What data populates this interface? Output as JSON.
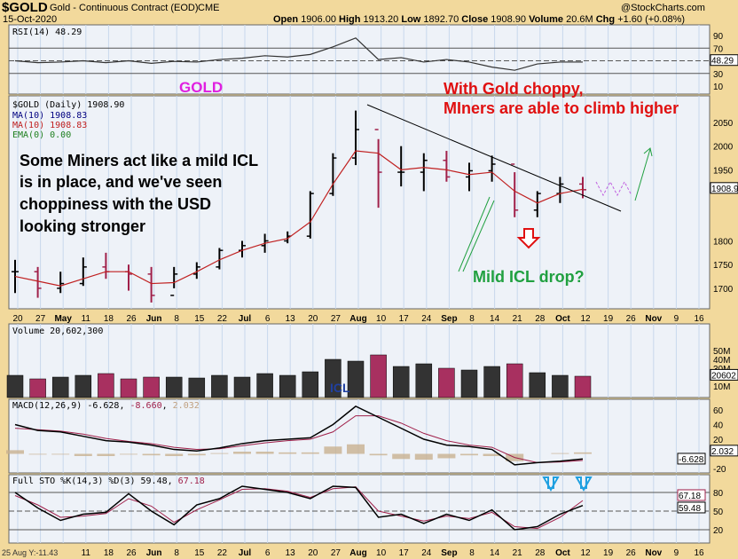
{
  "header": {
    "symbol": "$GOLD",
    "name": "Gold - Continuous Contract (EOD)",
    "exchange": "CME",
    "date": "15-Oct-2020",
    "watermark": "@StockCharts.com",
    "quote": {
      "open_l": "Open",
      "open": "1906.00",
      "high_l": "High",
      "high": "1913.20",
      "low_l": "Low",
      "low": "1892.70",
      "close_l": "Close",
      "close": "1908.90",
      "vol_l": "Volume",
      "vol": "20.6M",
      "chg_l": "Chg",
      "chg": "+1.60 (+0.08%)"
    }
  },
  "annotations": {
    "gold": "GOLD",
    "choppy1": "With Gold choppy,",
    "choppy2": "MIners are able to climb higher",
    "miners1": "Some Miners act like a mild ICL",
    "miners2": "is in place, and we've seen",
    "miners3": "choppiness with the USD",
    "miners4": "looking stronger",
    "icl_drop": "Mild ICL drop?",
    "icl": "ICL"
  },
  "footer": {
    "cursor": "25 Aug Y:-11.43"
  },
  "colors": {
    "bg": "#f2d99c",
    "panel": "#eef2f8",
    "up": "#000000",
    "down": "#a0204a",
    "ma": "#c02020",
    "annot_red": "#e01010",
    "annot_magenta": "#e020e0",
    "annot_green": "#20a040",
    "arrow_blue": "#20a0e0"
  },
  "chart_data": {
    "type": "bar",
    "x_ticks": [
      "20",
      "27",
      "May",
      "11",
      "18",
      "26",
      "Jun",
      "8",
      "15",
      "22",
      "Jul",
      "6",
      "13",
      "20",
      "27",
      "Aug",
      "10",
      "17",
      "24",
      "Sep",
      "8",
      "14",
      "21",
      "28",
      "Oct",
      "12",
      "19",
      "26",
      "Nov",
      "9",
      "16"
    ],
    "weeks": [
      "Apr20",
      "Apr27",
      "May4",
      "May11",
      "May18",
      "May26",
      "Jun1",
      "Jun8",
      "Jun15",
      "Jun22",
      "Jun29",
      "Jul6",
      "Jul13",
      "Jul20",
      "Jul27",
      "Aug3",
      "Aug10",
      "Aug17",
      "Aug24",
      "Aug31",
      "Sep7",
      "Sep14",
      "Sep21",
      "Sep28",
      "Oct5",
      "Oct12"
    ],
    "price": {
      "title": "$GOLD (Daily) 1908.90",
      "legend": [
        "MA(10) 1908.83",
        "MA(10) 1908.83",
        "EMA(0) 0.00"
      ],
      "y_ticks": [
        "2050",
        "2000",
        "1950",
        "1800",
        "1750",
        "1700"
      ],
      "last_label": "1908.9",
      "close": [
        1735,
        1700,
        1710,
        1745,
        1735,
        1730,
        1685,
        1730,
        1745,
        1780,
        1790,
        1800,
        1810,
        1900,
        1975,
        2035,
        1945,
        1945,
        1970,
        1935,
        1948,
        1962,
        1865,
        1900,
        1920,
        1908
      ],
      "high": [
        1760,
        1745,
        1735,
        1765,
        1775,
        1750,
        1745,
        1745,
        1755,
        1785,
        1800,
        1815,
        1820,
        1905,
        1985,
        2075,
        2015,
        2000,
        1985,
        1990,
        1965,
        1980,
        1945,
        1905,
        1935,
        1935
      ],
      "low": [
        1690,
        1680,
        1690,
        1705,
        1720,
        1695,
        1670,
        1700,
        1720,
        1740,
        1765,
        1775,
        1795,
        1805,
        1895,
        1960,
        1870,
        1915,
        1905,
        1925,
        1905,
        1925,
        1850,
        1850,
        1880,
        1890
      ],
      "ma": [
        1725,
        1715,
        1705,
        1720,
        1735,
        1735,
        1710,
        1712,
        1735,
        1760,
        1780,
        1795,
        1805,
        1840,
        1920,
        1990,
        1985,
        1950,
        1955,
        1950,
        1940,
        1945,
        1905,
        1880,
        1900,
        1909
      ]
    },
    "rsi": {
      "title": "RSI(14) 48.29",
      "y_ticks": [
        "90",
        "70",
        "30",
        "10"
      ],
      "last_label": "48.29",
      "values": [
        50,
        47,
        48,
        50,
        47,
        50,
        46,
        49,
        48,
        52,
        54,
        58,
        56,
        60,
        72,
        86,
        52,
        55,
        48,
        52,
        48,
        40,
        35,
        45,
        48,
        48
      ]
    },
    "volume": {
      "title": "Volume 20,602,300",
      "y_ticks": [
        "50M",
        "40M",
        "30M",
        "10M"
      ],
      "last_label": "20602",
      "values": [
        22,
        18,
        20,
        22,
        24,
        18,
        20,
        20,
        19,
        22,
        20,
        24,
        22,
        26,
        40,
        38,
        45,
        32,
        35,
        30,
        28,
        32,
        35,
        25,
        22,
        21
      ]
    },
    "macd": {
      "title": "MACD(12,26,9)",
      "v1": "-6.628",
      "v2": "-8.660",
      "v3": "2.032",
      "y_ticks": [
        "60",
        "40",
        "20",
        "-20"
      ],
      "last_labels": [
        "2.032",
        "-6.628"
      ],
      "macd": [
        40,
        32,
        30,
        24,
        18,
        16,
        12,
        6,
        4,
        8,
        14,
        18,
        20,
        22,
        40,
        65,
        50,
        35,
        20,
        12,
        10,
        6,
        -15,
        -12,
        -10,
        -7
      ],
      "signal": [
        35,
        33,
        31,
        27,
        21,
        17,
        14,
        9,
        6,
        7,
        11,
        15,
        18,
        20,
        30,
        52,
        52,
        42,
        28,
        18,
        12,
        9,
        -5,
        -12,
        -11,
        -9
      ]
    },
    "sto": {
      "title": "Full STO %K(14,3) %D(3)",
      "v1": "59.48",
      "v2": "67.18",
      "y_ticks": [
        "80",
        "50",
        "20"
      ],
      "last_labels": [
        "67.18",
        "59.48"
      ],
      "k": [
        80,
        55,
        35,
        45,
        48,
        78,
        50,
        28,
        60,
        70,
        90,
        85,
        80,
        70,
        90,
        88,
        40,
        45,
        30,
        45,
        35,
        52,
        20,
        25,
        45,
        59
      ],
      "d": [
        75,
        60,
        40,
        42,
        46,
        70,
        58,
        32,
        52,
        68,
        85,
        86,
        82,
        72,
        86,
        89,
        50,
        42,
        34,
        42,
        38,
        48,
        25,
        22,
        40,
        67
      ]
    }
  }
}
